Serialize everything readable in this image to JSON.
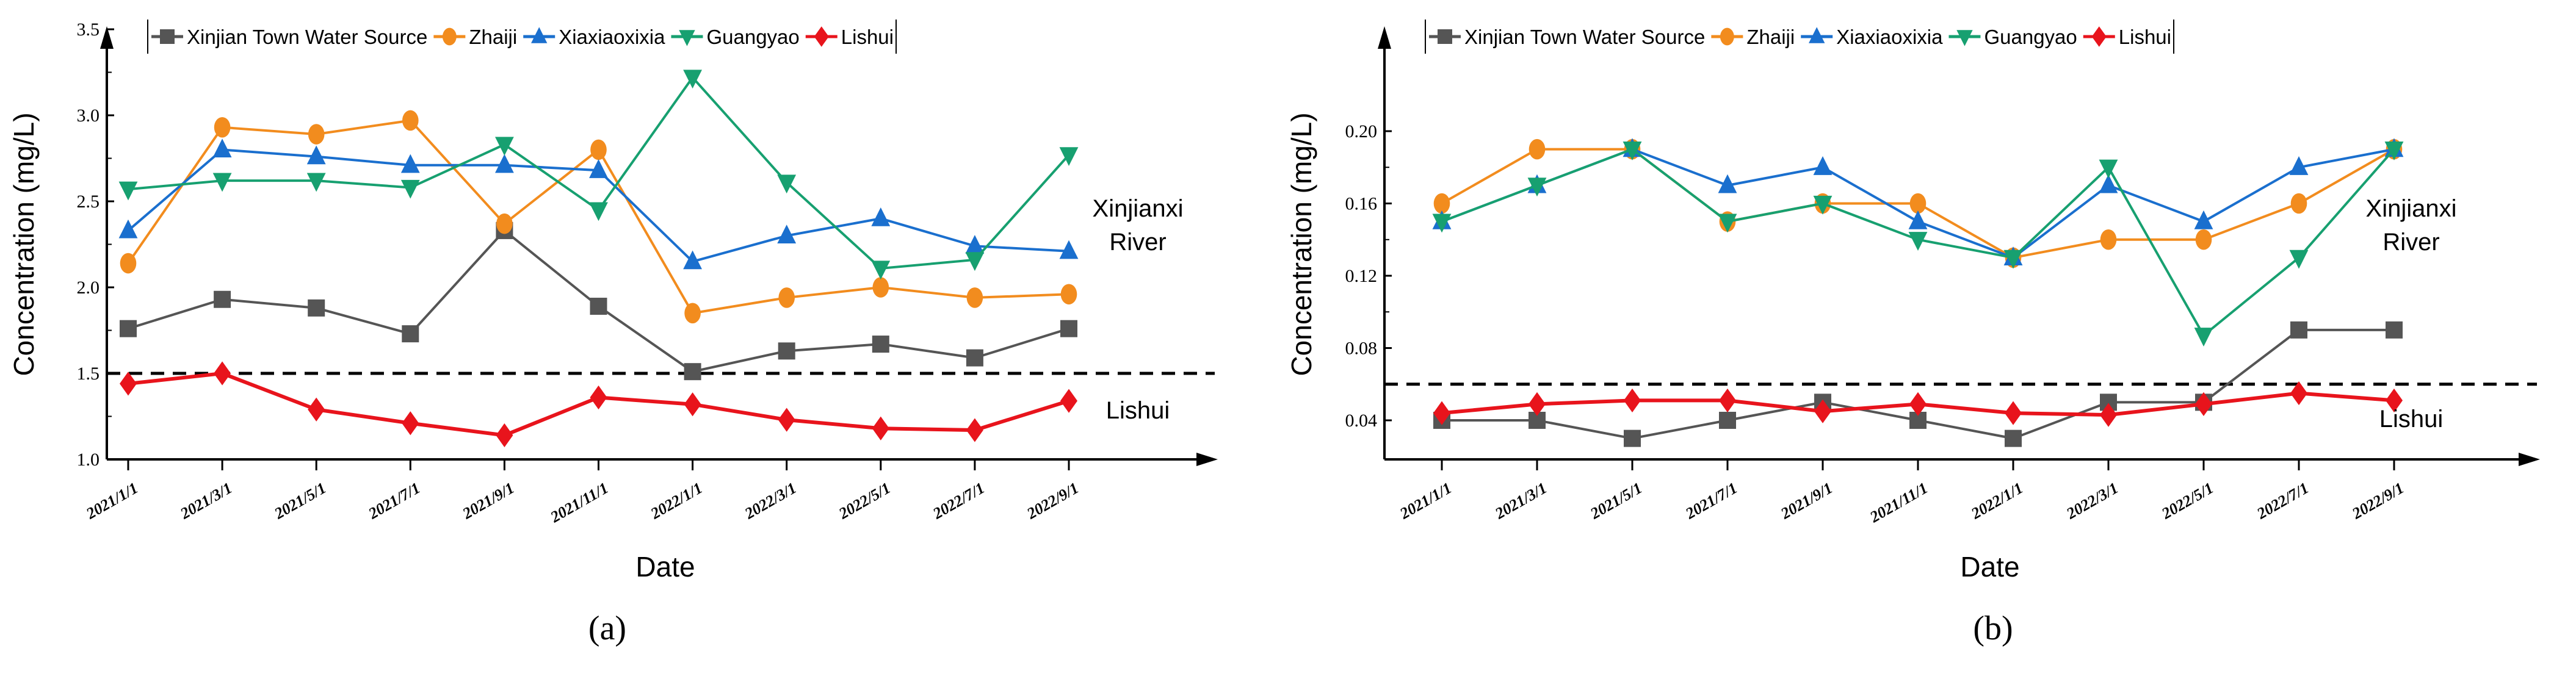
{
  "chart_data": [
    {
      "type": "line",
      "panel_label": "(a)",
      "panel_letter": "a",
      "xlabel": "Date",
      "ylabel": "Concentration (mg/L)",
      "ylim": [
        1.0,
        3.5
      ],
      "yticks": [
        "1.0",
        "1.5",
        "2.0",
        "2.5",
        "3.0",
        "3.5"
      ],
      "ytick_values": [
        1.0,
        1.5,
        2.0,
        2.5,
        3.0,
        3.5
      ],
      "categories": [
        "2021/1/1",
        "2021/3/1",
        "2021/5/1",
        "2021/7/1",
        "2021/9/1",
        "2021/11/1",
        "2022/1/1",
        "2022/3/1",
        "2022/5/1",
        "2022/7/1",
        "2022/9/1"
      ],
      "threshold": 1.5,
      "annotations": [
        "Xinjianxi",
        "River",
        "Lishui"
      ],
      "series": [
        {
          "name": "Xinjian Town Water Source",
          "color": "#555555",
          "marker": "square",
          "values": [
            1.76,
            1.93,
            1.88,
            1.73,
            2.33,
            1.89,
            1.51,
            1.63,
            1.67,
            1.59,
            1.76
          ]
        },
        {
          "name": "Zhaiji",
          "color": "#f28c1e",
          "marker": "circle",
          "values": [
            2.14,
            2.93,
            2.89,
            2.97,
            2.37,
            2.8,
            1.85,
            1.94,
            2.0,
            1.94,
            1.96
          ]
        },
        {
          "name": "Xiaxiaoxixia",
          "color": "#1a6fce",
          "marker": "triangle-up",
          "values": [
            2.33,
            2.8,
            2.76,
            2.71,
            2.71,
            2.68,
            2.15,
            2.3,
            2.4,
            2.24,
            2.21
          ]
        },
        {
          "name": "Guangyao",
          "color": "#17a070",
          "marker": "triangle-down",
          "values": [
            2.57,
            2.62,
            2.62,
            2.58,
            2.83,
            2.45,
            3.22,
            2.61,
            2.11,
            2.16,
            2.77
          ]
        },
        {
          "name": "Lishui",
          "color": "#e8141c",
          "marker": "diamond",
          "values": [
            1.44,
            1.5,
            1.29,
            1.21,
            1.14,
            1.36,
            1.32,
            1.23,
            1.18,
            1.17,
            1.34
          ]
        }
      ]
    },
    {
      "type": "line",
      "panel_label": "(b)",
      "panel_letter": "b",
      "xlabel": "Date",
      "ylabel": "Concentration (mg/L)",
      "ylim": [
        0.02,
        0.2
      ],
      "yticks": [
        "0.04",
        "0.08",
        "0.12",
        "0.16",
        "0.20"
      ],
      "ytick_values": [
        0.04,
        0.08,
        0.12,
        0.16,
        0.2
      ],
      "categories": [
        "2021/1/1",
        "2021/3/1",
        "2021/5/1",
        "2021/7/1",
        "2021/9/1",
        "2021/11/1",
        "2022/1/1",
        "2022/3/1",
        "2022/5/1",
        "2022/7/1",
        "2022/9/1"
      ],
      "threshold": 0.06,
      "annotations": [
        "Xinjianxi",
        "River",
        "Lishui"
      ],
      "series": [
        {
          "name": "Xinjian Town Water Source",
          "color": "#555555",
          "marker": "square",
          "values": [
            0.04,
            0.04,
            0.03,
            0.04,
            0.05,
            0.04,
            0.03,
            0.05,
            0.05,
            0.09,
            0.09
          ]
        },
        {
          "name": "Zhaiji",
          "color": "#f28c1e",
          "marker": "circle",
          "values": [
            0.16,
            0.19,
            0.19,
            0.15,
            0.16,
            0.16,
            0.13,
            0.14,
            0.14,
            0.16,
            0.19
          ]
        },
        {
          "name": "Xiaxiaoxixia",
          "color": "#1a6fce",
          "marker": "triangle-up",
          "values": [
            0.15,
            0.17,
            0.19,
            0.17,
            0.18,
            0.15,
            0.13,
            0.17,
            0.15,
            0.18,
            0.19
          ]
        },
        {
          "name": "Guangyao",
          "color": "#17a070",
          "marker": "triangle-down",
          "values": [
            0.15,
            0.17,
            0.19,
            0.15,
            0.16,
            0.14,
            0.13,
            0.18,
            0.087,
            0.13,
            0.19
          ]
        },
        {
          "name": "Lishui",
          "color": "#e8141c",
          "marker": "diamond",
          "values": [
            0.044,
            0.049,
            0.051,
            0.051,
            0.045,
            0.049,
            0.044,
            0.043,
            0.049,
            0.055,
            0.051
          ]
        }
      ]
    }
  ]
}
